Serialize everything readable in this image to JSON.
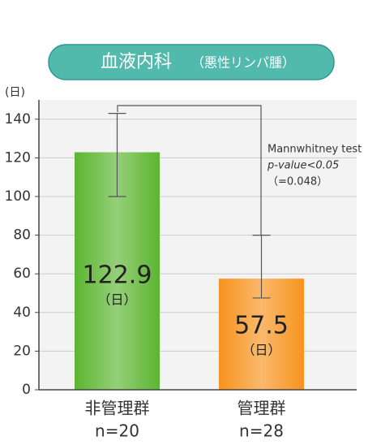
{
  "chart_data": {
    "type": "bar",
    "title": "血液内科",
    "subtitle": "（悪性リンパ腫）",
    "ylabel": "(日)",
    "categories": [
      "非管理群",
      "管理群"
    ],
    "n_labels": [
      "n=20",
      "n=28"
    ],
    "values": [
      122.9,
      57.5
    ],
    "value_unit": "（日）",
    "colors": [
      "#5cb531",
      "#f7931e"
    ],
    "error_low": [
      100,
      47.5
    ],
    "error_high": [
      143,
      80
    ],
    "annotations": [
      "Mannwhitney test",
      "p-value<0.05",
      "（=0.048）"
    ],
    "ylim": [
      0,
      150
    ],
    "yticks": [
      0,
      20,
      40,
      60,
      80,
      100,
      120,
      140
    ],
    "grid": true
  }
}
